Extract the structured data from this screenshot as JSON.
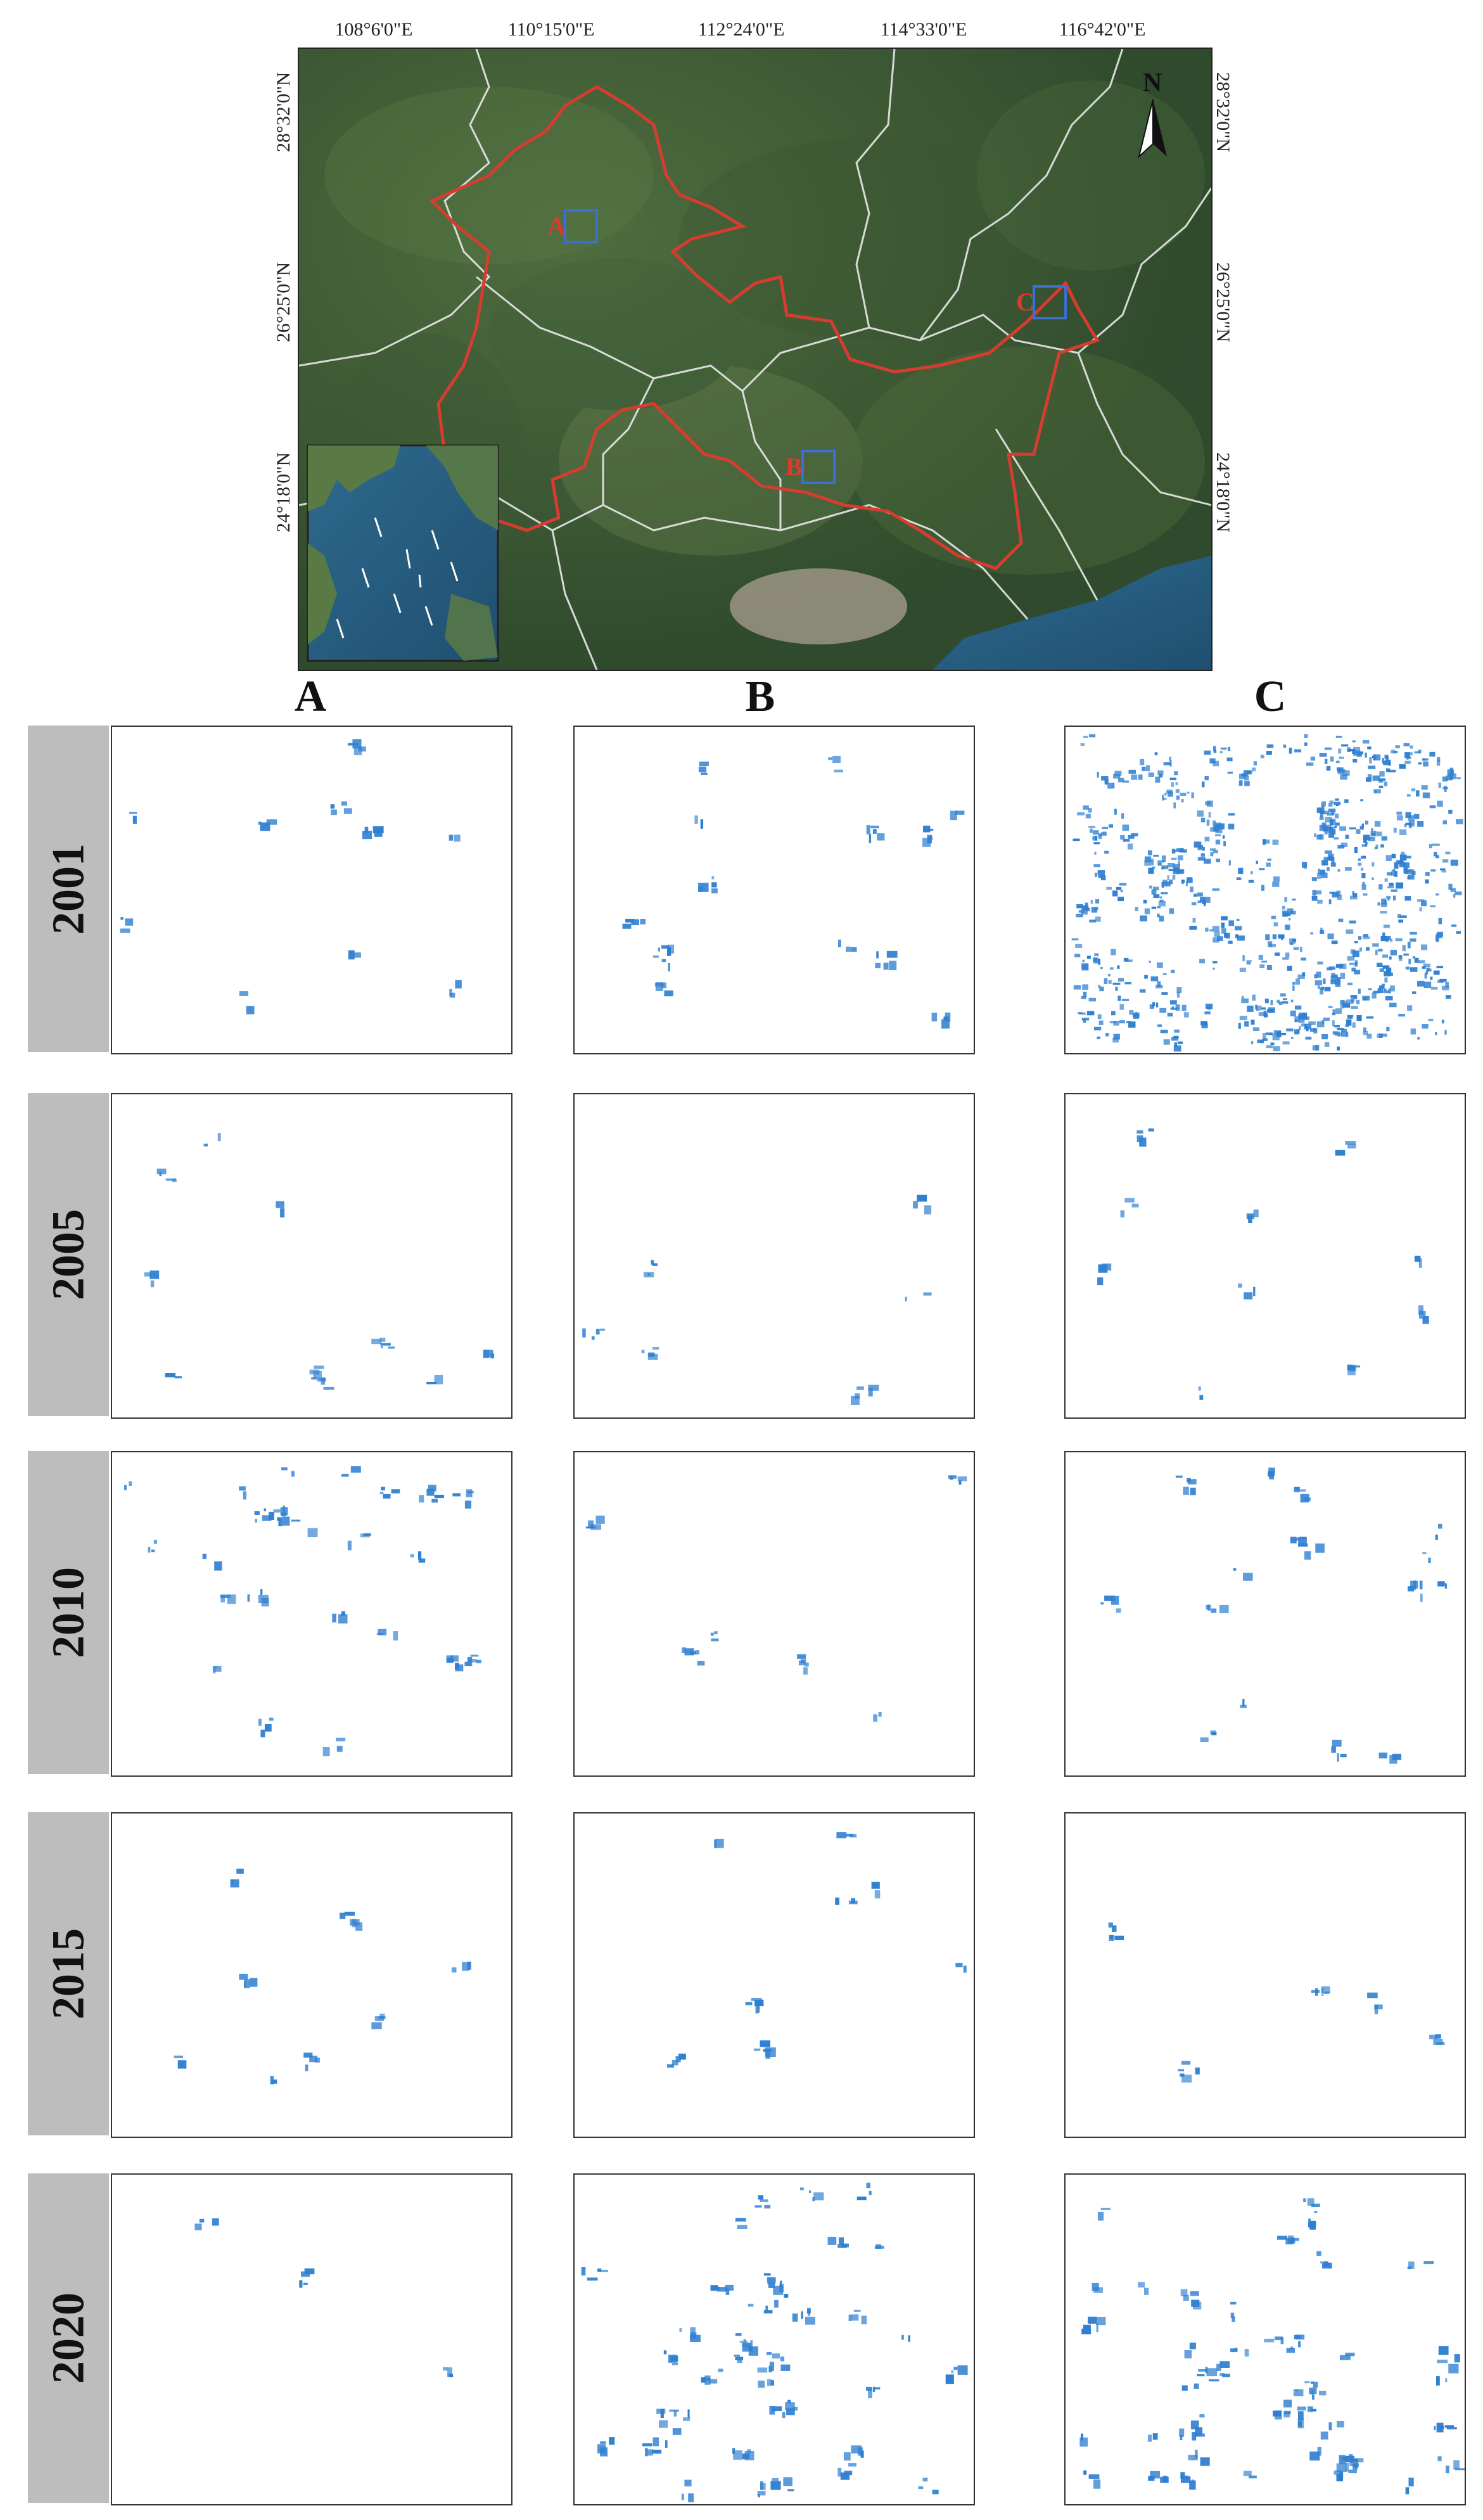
{
  "overview": {
    "lon_labels": [
      "108°6'0\"E",
      "110°15'0\"E",
      "112°24'0\"E",
      "114°33'0\"E",
      "116°42'0\"E"
    ],
    "lat_labels": [
      "28°32'0\"N",
      "26°25'0\"N",
      "24°18'0\"N"
    ],
    "north_label": "N",
    "sites": [
      {
        "label": "A"
      },
      {
        "label": "B"
      },
      {
        "label": "C"
      }
    ],
    "colors": {
      "study_area_outline": "#d63c2f",
      "site_box": "#3b6fd6",
      "province_lines": "#e8e8e8"
    }
  },
  "columns": [
    "A",
    "B",
    "C"
  ],
  "years": [
    "2001",
    "2005",
    "2010",
    "2015",
    "2020"
  ],
  "patch_color": "#2f7fd1"
}
